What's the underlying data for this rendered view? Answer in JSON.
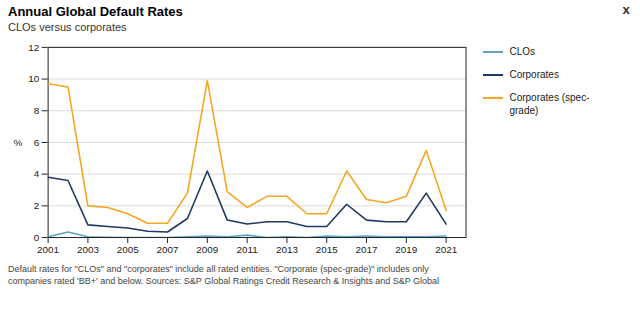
{
  "chart_data": {
    "type": "line",
    "title": "Annual Global Default Rates",
    "subtitle": "CLOs versus corporates",
    "ylabel": "%",
    "x": [
      2001,
      2002,
      2003,
      2004,
      2005,
      2006,
      2007,
      2008,
      2009,
      2010,
      2011,
      2012,
      2013,
      2014,
      2015,
      2016,
      2017,
      2018,
      2019,
      2020,
      2021
    ],
    "series": [
      {
        "name": "CLOs",
        "color": "#5ba3c9",
        "values": [
          0.05,
          0.35,
          0.05,
          0.02,
          0.0,
          0.0,
          0.0,
          0.05,
          0.1,
          0.05,
          0.15,
          0.0,
          0.05,
          0.0,
          0.1,
          0.05,
          0.1,
          0.05,
          0.05,
          0.05,
          0.1
        ]
      },
      {
        "name": "Corporates",
        "color": "#1f3864",
        "values": [
          3.8,
          3.6,
          0.8,
          0.7,
          0.6,
          0.4,
          0.35,
          1.2,
          4.2,
          1.1,
          0.85,
          1.0,
          1.0,
          0.7,
          0.7,
          2.1,
          1.1,
          1.0,
          1.0,
          2.8,
          0.85
        ]
      },
      {
        "name": "Corporates (spec-\ngrade)",
        "color": "#f5a623",
        "values": [
          9.7,
          9.5,
          2.0,
          1.9,
          1.5,
          0.9,
          0.9,
          2.8,
          9.9,
          2.9,
          1.9,
          2.6,
          2.6,
          1.5,
          1.5,
          4.2,
          2.4,
          2.2,
          2.6,
          5.5,
          1.7
        ]
      }
    ],
    "xlim": [
      2001,
      2022
    ],
    "xticks": [
      2001,
      2003,
      2005,
      2007,
      2009,
      2011,
      2013,
      2015,
      2017,
      2019,
      2021
    ],
    "ylim": [
      0,
      12
    ],
    "yticks": [
      0,
      2,
      4,
      6,
      8,
      10,
      12
    ],
    "grid": true,
    "legend": "right",
    "footnote": "Default rates for \"CLOs\" and \"corporates\" include all rated entities. \"Corporate (spec-grade)\" includes only\ncompanies rated 'BB+' and below. Sources: S&P Global Ratings Credit Research & Insights and S&P Global",
    "annotations": [
      "x"
    ]
  }
}
